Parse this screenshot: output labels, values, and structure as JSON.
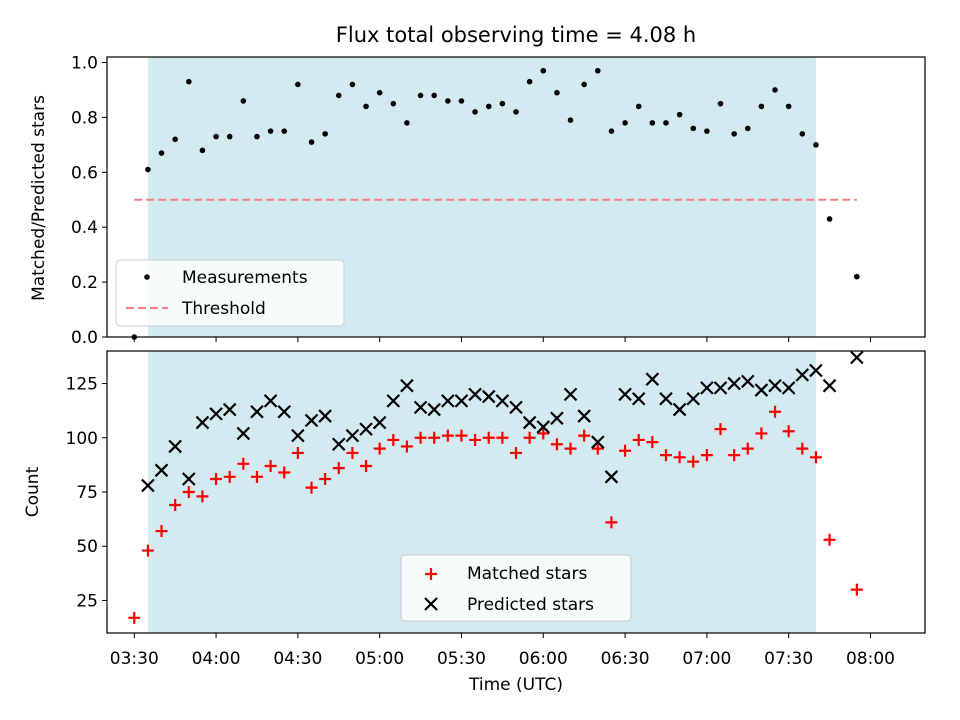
{
  "chart_data": [
    {
      "type": "scatter",
      "title": "Flux total observing time = 4.08 h",
      "xlabel": "",
      "ylabel": "Matched/Predicted stars",
      "ylim": [
        0,
        1.02
      ],
      "yticks": [
        "0.0",
        "0.2",
        "0.4",
        "0.6",
        "0.8",
        "1.0"
      ],
      "shaded_span_minutes": [
        215,
        460
      ],
      "shade_color": "#d3eaf0",
      "legend_position": "lower-left",
      "series": [
        {
          "name": "Measurements",
          "color": "#000000",
          "marker": "dot",
          "x": [
            "03:30",
            "03:35",
            "03:40",
            "03:45",
            "03:50",
            "03:55",
            "04:00",
            "04:05",
            "04:10",
            "04:15",
            "04:20",
            "04:25",
            "04:30",
            "04:35",
            "04:40",
            "04:45",
            "04:50",
            "04:55",
            "05:00",
            "05:05",
            "05:10",
            "05:15",
            "05:20",
            "05:25",
            "05:30",
            "05:35",
            "05:40",
            "05:45",
            "05:50",
            "05:55",
            "06:00",
            "06:05",
            "06:10",
            "06:15",
            "06:20",
            "06:25",
            "06:30",
            "06:35",
            "06:40",
            "06:45",
            "06:50",
            "06:55",
            "07:00",
            "07:05",
            "07:10",
            "07:15",
            "07:20",
            "07:25",
            "07:30",
            "07:35",
            "07:40",
            "07:45",
            "07:55"
          ],
          "values": [
            0.0,
            0.61,
            0.67,
            0.72,
            0.93,
            0.68,
            0.73,
            0.73,
            0.86,
            0.73,
            0.75,
            0.75,
            0.92,
            0.71,
            0.74,
            0.88,
            0.92,
            0.84,
            0.89,
            0.85,
            0.78,
            0.88,
            0.88,
            0.86,
            0.86,
            0.82,
            0.84,
            0.85,
            0.82,
            0.93,
            0.97,
            0.89,
            0.79,
            0.92,
            0.97,
            0.75,
            0.78,
            0.84,
            0.78,
            0.78,
            0.81,
            0.76,
            0.75,
            0.85,
            0.74,
            0.76,
            0.84,
            0.9,
            0.84,
            0.74,
            0.7,
            0.43,
            0.22
          ]
        },
        {
          "name": "Threshold",
          "color": "#f08080",
          "style": "dashed",
          "x": [
            "03:30",
            "07:55"
          ],
          "values": [
            0.5,
            0.5
          ]
        }
      ]
    },
    {
      "type": "scatter",
      "title": "",
      "xlabel": "Time (UTC)",
      "ylabel": "Count",
      "ylim": [
        10,
        140
      ],
      "yticks": [
        "25",
        "50",
        "75",
        "100",
        "125"
      ],
      "xticks": [
        "03:30",
        "04:00",
        "04:30",
        "05:00",
        "05:30",
        "06:00",
        "06:30",
        "07:00",
        "07:30",
        "08:00"
      ],
      "shaded_span_minutes": [
        215,
        460
      ],
      "shade_color": "#d3eaf0",
      "legend_position": "bottom-center",
      "series": [
        {
          "name": "Matched stars",
          "color": "#ff0000",
          "marker": "plus",
          "x": [
            "03:30",
            "03:35",
            "03:40",
            "03:45",
            "03:50",
            "03:55",
            "04:00",
            "04:05",
            "04:10",
            "04:15",
            "04:20",
            "04:25",
            "04:30",
            "04:35",
            "04:40",
            "04:45",
            "04:50",
            "04:55",
            "05:00",
            "05:05",
            "05:10",
            "05:15",
            "05:20",
            "05:25",
            "05:30",
            "05:35",
            "05:40",
            "05:45",
            "05:50",
            "05:55",
            "06:00",
            "06:05",
            "06:10",
            "06:15",
            "06:20",
            "06:25",
            "06:30",
            "06:35",
            "06:40",
            "06:45",
            "06:50",
            "06:55",
            "07:00",
            "07:05",
            "07:10",
            "07:15",
            "07:20",
            "07:25",
            "07:30",
            "07:35",
            "07:40",
            "07:45",
            "07:55"
          ],
          "values": [
            17,
            48,
            57,
            69,
            75,
            73,
            81,
            82,
            88,
            82,
            87,
            84,
            93,
            77,
            81,
            86,
            93,
            87,
            95,
            99,
            96,
            100,
            100,
            101,
            101,
            99,
            100,
            100,
            93,
            100,
            102,
            97,
            95,
            101,
            95,
            61,
            94,
            99,
            98,
            92,
            91,
            89,
            92,
            104,
            92,
            95,
            102,
            112,
            103,
            95,
            91,
            53,
            30
          ]
        },
        {
          "name": "Predicted stars",
          "color": "#000000",
          "marker": "x",
          "x": [
            "03:35",
            "03:40",
            "03:45",
            "03:50",
            "03:55",
            "04:00",
            "04:05",
            "04:10",
            "04:15",
            "04:20",
            "04:25",
            "04:30",
            "04:35",
            "04:40",
            "04:45",
            "04:50",
            "04:55",
            "05:00",
            "05:05",
            "05:10",
            "05:15",
            "05:20",
            "05:25",
            "05:30",
            "05:35",
            "05:40",
            "05:45",
            "05:50",
            "05:55",
            "06:00",
            "06:05",
            "06:10",
            "06:15",
            "06:20",
            "06:25",
            "06:30",
            "06:35",
            "06:40",
            "06:45",
            "06:50",
            "06:55",
            "07:00",
            "07:05",
            "07:10",
            "07:15",
            "07:20",
            "07:25",
            "07:30",
            "07:35",
            "07:40",
            "07:45",
            "07:55"
          ],
          "values": [
            78,
            85,
            96,
            81,
            107,
            111,
            113,
            102,
            112,
            117,
            112,
            101,
            108,
            110,
            97,
            101,
            104,
            107,
            117,
            124,
            114,
            113,
            117,
            117,
            120,
            119,
            117,
            114,
            107,
            105,
            109,
            120,
            110,
            98,
            82,
            120,
            118,
            127,
            118,
            113,
            118,
            123,
            123,
            125,
            126,
            122,
            124,
            123,
            129,
            131,
            124,
            137
          ]
        }
      ]
    }
  ]
}
